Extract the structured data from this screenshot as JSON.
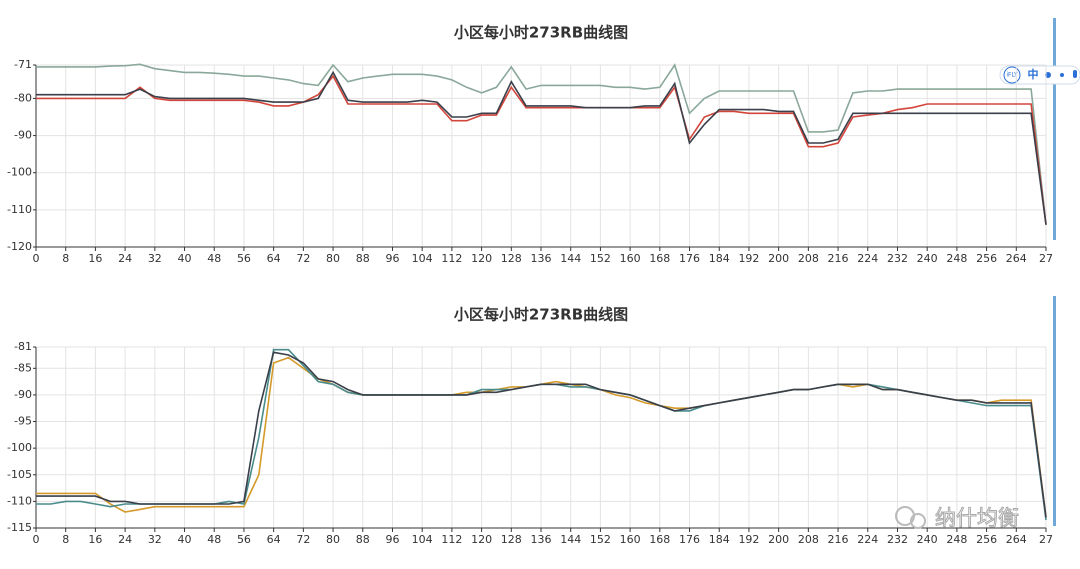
{
  "chart_data": [
    {
      "type": "line",
      "title": "小区每小时273RB曲线图",
      "grid": true,
      "x": [
        0,
        4,
        8,
        12,
        16,
        20,
        24,
        28,
        32,
        36,
        40,
        44,
        48,
        52,
        56,
        60,
        64,
        68,
        72,
        76,
        80,
        84,
        88,
        92,
        96,
        100,
        104,
        108,
        112,
        116,
        120,
        124,
        128,
        132,
        136,
        140,
        144,
        148,
        152,
        156,
        160,
        164,
        168,
        172,
        176,
        180,
        184,
        188,
        192,
        196,
        200,
        204,
        208,
        212,
        216,
        220,
        224,
        228,
        232,
        236,
        240,
        244,
        248,
        252,
        256,
        260,
        264,
        268,
        272
      ],
      "xlim": [
        0,
        272
      ],
      "xticks": [
        0,
        8,
        16,
        24,
        32,
        40,
        48,
        56,
        64,
        72,
        80,
        88,
        96,
        104,
        112,
        120,
        128,
        136,
        144,
        152,
        160,
        168,
        176,
        184,
        192,
        200,
        208,
        216,
        224,
        232,
        240,
        248,
        256,
        264,
        {
          "value": 272,
          "label": "27"
        }
      ],
      "ylim": [
        -120,
        -71
      ],
      "yticks": [
        -71,
        -80,
        -90,
        -100,
        -110,
        -120
      ],
      "series": [
        {
          "color": "#8aa89a",
          "values": [
            -71.5,
            -71.5,
            -71.5,
            -71.5,
            -71.5,
            -71.3,
            -71.2,
            -70.8,
            -72,
            -72.5,
            -73,
            -73,
            -73.2,
            -73.5,
            -74,
            -74,
            -74.5,
            -75,
            -76,
            -76.5,
            -71,
            -75.5,
            -74.5,
            -74,
            -73.5,
            -73.5,
            -73.5,
            -74,
            -75,
            -77,
            -78.5,
            -77,
            -71.5,
            -77.5,
            -76.5,
            -76.5,
            -76.5,
            -76.5,
            -76.5,
            -77,
            -77,
            -77.5,
            -77,
            -71,
            -84,
            -80,
            -78,
            -78,
            -78,
            -78,
            -78,
            -78,
            -89,
            -89,
            -88.5,
            -78.5,
            -78,
            -78,
            -77.5,
            -77.5,
            -77.5,
            -77.5,
            -77.5,
            -77.5,
            -77.5,
            -77.5,
            -77.5,
            -77.5,
            -114
          ]
        },
        {
          "color": "#d2453b",
          "values": [
            -80,
            -80,
            -80,
            -80,
            -80,
            -80,
            -80,
            -77,
            -80,
            -80.5,
            -80.5,
            -80.5,
            -80.5,
            -80.5,
            -80.5,
            -81,
            -82,
            -82,
            -81,
            -79,
            -74,
            -81.5,
            -81.5,
            -81.5,
            -81.5,
            -81.5,
            -81.5,
            -81.5,
            -86,
            -86,
            -84.5,
            -84.5,
            -77,
            -82.5,
            -82.5,
            -82.5,
            -82.5,
            -82.5,
            -82.5,
            -82.5,
            -82.5,
            -82.5,
            -82.5,
            -77,
            -91,
            -85,
            -83.5,
            -83.5,
            -84,
            -84,
            -84,
            -84,
            -93,
            -93,
            -92,
            -85,
            -84.5,
            -84,
            -83,
            -82.5,
            -81.5,
            -81.5,
            -81.5,
            -81.5,
            -81.5,
            -81.5,
            -81.5,
            -81.5,
            -114
          ]
        },
        {
          "color": "#3a3f4a",
          "values": [
            -79,
            -79,
            -79,
            -79,
            -79,
            -79,
            -79,
            -77.5,
            -79.5,
            -80,
            -80,
            -80,
            -80,
            -80,
            -80,
            -80.5,
            -81,
            -81,
            -81,
            -80,
            -73,
            -80.5,
            -81,
            -81,
            -81,
            -81,
            -80.5,
            -81,
            -85,
            -85,
            -84,
            -84,
            -75.5,
            -82,
            -82,
            -82,
            -82,
            -82.5,
            -82.5,
            -82.5,
            -82.5,
            -82,
            -82,
            -76,
            -92,
            -87,
            -83,
            -83,
            -83,
            -83,
            -83.5,
            -83.5,
            -92,
            -92,
            -91,
            -84,
            -84,
            -84,
            -84,
            -84,
            -84,
            -84,
            -84,
            -84,
            -84,
            -84,
            -84,
            -84,
            -114
          ]
        }
      ]
    },
    {
      "type": "line",
      "title": "小区每小时273RB曲线图",
      "grid": true,
      "x": [
        0,
        4,
        8,
        12,
        16,
        20,
        24,
        28,
        32,
        36,
        40,
        44,
        48,
        52,
        56,
        60,
        64,
        68,
        72,
        76,
        80,
        84,
        88,
        92,
        96,
        100,
        104,
        108,
        112,
        116,
        120,
        124,
        128,
        132,
        136,
        140,
        144,
        148,
        152,
        156,
        160,
        164,
        168,
        172,
        176,
        180,
        184,
        188,
        192,
        196,
        200,
        204,
        208,
        212,
        216,
        220,
        224,
        228,
        232,
        236,
        240,
        244,
        248,
        252,
        256,
        260,
        264,
        268,
        272
      ],
      "xlim": [
        0,
        272
      ],
      "xticks": [
        0,
        8,
        16,
        24,
        32,
        40,
        48,
        56,
        64,
        72,
        80,
        88,
        96,
        104,
        112,
        120,
        128,
        136,
        144,
        152,
        160,
        168,
        176,
        184,
        192,
        200,
        208,
        216,
        224,
        232,
        240,
        248,
        256,
        264,
        {
          "value": 272,
          "label": "27"
        }
      ],
      "ylim": [
        -115,
        -81
      ],
      "yticks": [
        -81,
        -85,
        -90,
        -95,
        -100,
        -105,
        -110,
        -115
      ],
      "series": [
        {
          "color": "#d49a2a",
          "values": [
            -108.5,
            -108.5,
            -108.5,
            -108.5,
            -108.5,
            -110.5,
            -112,
            -111.5,
            -111,
            -111,
            -111,
            -111,
            -111,
            -111,
            -111,
            -105,
            -84,
            -83,
            -85,
            -87,
            -88,
            -89.5,
            -90,
            -90,
            -90,
            -90,
            -90,
            -90,
            -90,
            -89.5,
            -89.5,
            -89,
            -88.5,
            -88.5,
            -88,
            -87.5,
            -88,
            -88.5,
            -89,
            -90,
            -90.5,
            -91.5,
            -92,
            -92.5,
            -92.5,
            -92,
            -91.5,
            -91,
            -90.5,
            -90,
            -89.5,
            -89,
            -89,
            -88.5,
            -88,
            -88.5,
            -88,
            -89,
            -89,
            -89.5,
            -90,
            -90.5,
            -91,
            -91,
            -91.5,
            -91,
            -91,
            -91,
            -113
          ]
        },
        {
          "color": "#4a8c8c",
          "values": [
            -110.5,
            -110.5,
            -110,
            -110,
            -110.5,
            -111,
            -110.5,
            -110.5,
            -110.5,
            -110.5,
            -110.5,
            -110.5,
            -110.5,
            -110,
            -110.5,
            -98,
            -81.5,
            -81.5,
            -84.5,
            -87.5,
            -88,
            -89.5,
            -90,
            -90,
            -90,
            -90,
            -90,
            -90,
            -90,
            -90,
            -89,
            -89,
            -89,
            -88.5,
            -88,
            -88,
            -88.5,
            -88.5,
            -89,
            -89.5,
            -90,
            -91,
            -92,
            -93,
            -93,
            -92,
            -91.5,
            -91,
            -90.5,
            -90,
            -89.5,
            -89,
            -89,
            -88.5,
            -88,
            -88,
            -88,
            -88.5,
            -89,
            -89.5,
            -90,
            -90.5,
            -91,
            -91.5,
            -92,
            -92,
            -92,
            -92,
            -113.5
          ]
        },
        {
          "color": "#3a3f4a",
          "values": [
            -109,
            -109,
            -109,
            -109,
            -109,
            -110,
            -110,
            -110.5,
            -110.5,
            -110.5,
            -110.5,
            -110.5,
            -110.5,
            -110.5,
            -110,
            -93,
            -82,
            -82.5,
            -84,
            -87,
            -87.5,
            -89,
            -90,
            -90,
            -90,
            -90,
            -90,
            -90,
            -90,
            -90,
            -89.5,
            -89.5,
            -89,
            -88.5,
            -88,
            -88,
            -88,
            -88,
            -89,
            -89.5,
            -90,
            -91,
            -92,
            -93,
            -92.5,
            -92,
            -91.5,
            -91,
            -90.5,
            -90,
            -89.5,
            -89,
            -89,
            -88.5,
            -88,
            -88,
            -88,
            -89,
            -89,
            -89.5,
            -90,
            -90.5,
            -91,
            -91,
            -91.5,
            -91.5,
            -91.5,
            -91.5,
            -113
          ]
        }
      ]
    }
  ],
  "toolbar": {
    "logo": "iFLY",
    "lang": "中"
  },
  "watermark": "纳什均衡"
}
